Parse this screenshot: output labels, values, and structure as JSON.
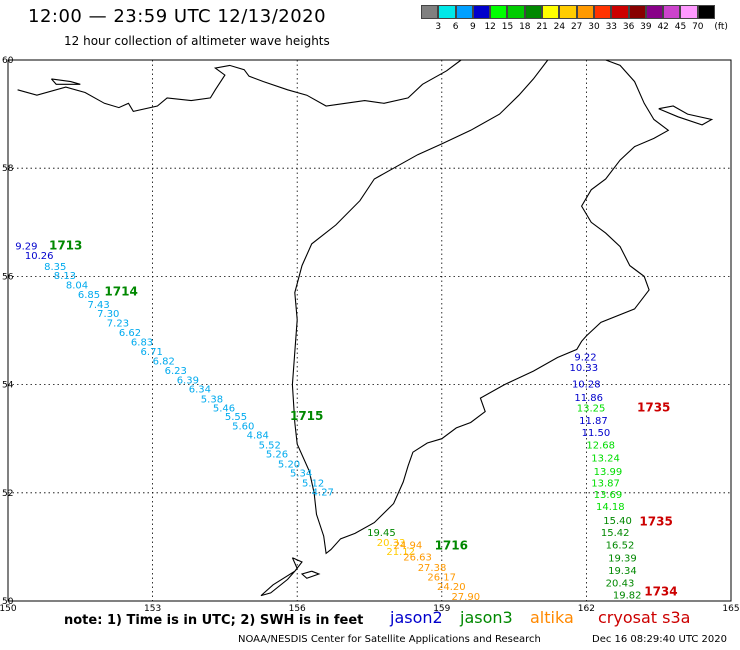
{
  "header": {
    "title": "12:00 — 23:59 UTC 12/13/2020",
    "subtitle": "12 hour collection of altimeter wave heights"
  },
  "legend": {
    "colors": [
      "#808080",
      "#00e8e8",
      "#00a0ff",
      "#0000cc",
      "#00ff00",
      "#00cc00",
      "#008800",
      "#ffff00",
      "#ffcc00",
      "#ff9900",
      "#ff3300",
      "#cc0000",
      "#880000",
      "#880088",
      "#cc44cc",
      "#ff99ff",
      "#000000"
    ],
    "labels": [
      "3",
      "6",
      "9",
      "12",
      "15",
      "18",
      "21",
      "24",
      "27",
      "30",
      "33",
      "36",
      "39",
      "42",
      "45",
      "70",
      "(ft)"
    ]
  },
  "map": {
    "lon_range": [
      150,
      165
    ],
    "lat_range": [
      50,
      60
    ],
    "lon_ticks": [
      {
        "v": 150,
        "label": "150"
      },
      {
        "v": 153,
        "label": "153"
      },
      {
        "v": 156,
        "label": "156"
      },
      {
        "v": 159,
        "label": "159"
      },
      {
        "v": 162,
        "label": "162"
      },
      {
        "v": 165,
        "label": "165"
      }
    ],
    "lat_ticks": [
      {
        "v": 50,
        "label": "50"
      },
      {
        "v": 52,
        "label": "52"
      },
      {
        "v": 54,
        "label": "54"
      },
      {
        "v": 56,
        "label": "56"
      },
      {
        "v": 58,
        "label": "58"
      },
      {
        "v": 60,
        "label": "60"
      }
    ],
    "coastlines": [
      [
        [
          150.2,
          59.45
        ],
        [
          150.6,
          59.35
        ],
        [
          151.2,
          59.5
        ],
        [
          151.6,
          59.4
        ],
        [
          152.0,
          59.2
        ],
        [
          152.3,
          59.12
        ],
        [
          152.5,
          59.2
        ],
        [
          152.6,
          59.05
        ],
        [
          153.1,
          59.15
        ],
        [
          153.3,
          59.3
        ],
        [
          153.8,
          59.25
        ],
        [
          154.2,
          59.3
        ],
        [
          154.3,
          59.45
        ],
        [
          154.5,
          59.72
        ],
        [
          154.3,
          59.85
        ],
        [
          154.6,
          59.9
        ],
        [
          154.9,
          59.82
        ],
        [
          155.0,
          59.7
        ],
        [
          155.3,
          59.6
        ],
        [
          155.8,
          59.45
        ],
        [
          156.2,
          59.35
        ],
        [
          156.6,
          59.15
        ],
        [
          157.0,
          59.2
        ],
        [
          157.4,
          59.25
        ],
        [
          157.8,
          59.2
        ],
        [
          158.3,
          59.3
        ],
        [
          158.6,
          59.55
        ],
        [
          159.1,
          59.8
        ],
        [
          159.4,
          60.0
        ]
      ],
      [
        [
          162.4,
          60.0
        ],
        [
          162.7,
          59.9
        ],
        [
          163.0,
          59.6
        ],
        [
          163.2,
          59.2
        ],
        [
          163.4,
          58.9
        ],
        [
          163.7,
          58.7
        ],
        [
          163.4,
          58.55
        ],
        [
          163.0,
          58.4
        ],
        [
          162.7,
          58.15
        ],
        [
          162.4,
          57.8
        ],
        [
          162.1,
          57.6
        ],
        [
          161.9,
          57.3
        ],
        [
          162.1,
          57.0
        ],
        [
          162.4,
          56.8
        ],
        [
          162.7,
          56.55
        ],
        [
          162.9,
          56.2
        ],
        [
          163.2,
          56.0
        ],
        [
          163.3,
          55.75
        ],
        [
          163.0,
          55.4
        ],
        [
          162.3,
          55.15
        ],
        [
          162.0,
          54.9
        ],
        [
          161.9,
          54.8
        ],
        [
          161.8,
          54.65
        ],
        [
          161.4,
          54.5
        ],
        [
          160.9,
          54.25
        ],
        [
          160.3,
          54.0
        ],
        [
          159.8,
          53.75
        ],
        [
          159.9,
          53.5
        ],
        [
          159.6,
          53.3
        ],
        [
          159.3,
          53.2
        ],
        [
          159.0,
          53.0
        ],
        [
          158.7,
          52.92
        ],
        [
          158.4,
          52.75
        ],
        [
          158.3,
          52.5
        ],
        [
          158.2,
          52.2
        ],
        [
          158.0,
          51.8
        ],
        [
          157.6,
          51.45
        ],
        [
          157.2,
          51.25
        ],
        [
          156.9,
          51.15
        ],
        [
          156.7,
          50.95
        ],
        [
          156.6,
          50.88
        ],
        [
          156.55,
          51.2
        ],
        [
          156.4,
          51.6
        ],
        [
          156.35,
          52.0
        ],
        [
          156.25,
          52.4
        ],
        [
          156.0,
          52.9
        ],
        [
          155.95,
          53.3
        ],
        [
          155.9,
          54.0
        ],
        [
          155.95,
          54.6
        ],
        [
          156.0,
          55.2
        ],
        [
          155.95,
          55.7
        ],
        [
          156.1,
          56.2
        ],
        [
          156.3,
          56.6
        ],
        [
          156.8,
          56.95
        ],
        [
          157.3,
          57.4
        ],
        [
          157.6,
          57.8
        ],
        [
          158.0,
          58.0
        ],
        [
          158.5,
          58.25
        ],
        [
          159.0,
          58.45
        ],
        [
          159.6,
          58.7
        ],
        [
          160.2,
          59.0
        ],
        [
          160.6,
          59.35
        ],
        [
          160.9,
          59.65
        ],
        [
          161.2,
          60.0
        ]
      ],
      [
        [
          155.9,
          50.8
        ],
        [
          156.1,
          50.72
        ],
        [
          155.95,
          50.55
        ],
        [
          155.5,
          50.3
        ],
        [
          155.25,
          50.1
        ],
        [
          155.45,
          50.15
        ],
        [
          155.8,
          50.4
        ],
        [
          156.0,
          50.6
        ],
        [
          155.9,
          50.8
        ]
      ],
      [
        [
          156.3,
          50.55
        ],
        [
          156.45,
          50.5
        ],
        [
          156.2,
          50.42
        ],
        [
          156.1,
          50.5
        ],
        [
          156.3,
          50.55
        ]
      ],
      [
        [
          163.5,
          59.1
        ],
        [
          163.8,
          59.15
        ],
        [
          164.1,
          59.0
        ],
        [
          164.6,
          58.9
        ],
        [
          164.4,
          58.8
        ],
        [
          163.9,
          58.95
        ],
        [
          163.5,
          59.1
        ]
      ],
      [
        [
          150.9,
          59.65
        ],
        [
          151.3,
          59.6
        ],
        [
          151.5,
          59.55
        ],
        [
          151.0,
          59.55
        ],
        [
          150.9,
          59.65
        ]
      ]
    ],
    "passes": [
      {
        "label": "1713",
        "lon": 150.85,
        "lat": 56.5,
        "color": "#008800"
      },
      {
        "label": "1714",
        "lon": 152.0,
        "lat": 55.65,
        "color": "#008800"
      },
      {
        "label": "1715",
        "lon": 155.85,
        "lat": 53.35,
        "color": "#008800"
      },
      {
        "label": "1716",
        "lon": 158.85,
        "lat": 50.95,
        "color": "#008800"
      },
      {
        "label": "1735",
        "lon": 163.05,
        "lat": 53.5,
        "color": "#cc0000"
      },
      {
        "label": "1735",
        "lon": 163.1,
        "lat": 51.4,
        "color": "#cc0000"
      },
      {
        "label": "1734",
        "lon": 163.2,
        "lat": 50.1,
        "color": "#cc0000"
      }
    ],
    "tracks": [
      {
        "color": "#0000cc",
        "obs": [
          {
            "lon": 150.15,
            "lat": 56.5,
            "v": "9.29"
          },
          {
            "lon": 150.35,
            "lat": 56.32,
            "v": "10.26"
          }
        ]
      },
      {
        "color": "#00aaee",
        "obs": [
          {
            "lon": 150.75,
            "lat": 56.12,
            "v": "8.35"
          },
          {
            "lon": 150.95,
            "lat": 55.95,
            "v": "8.13"
          },
          {
            "lon": 151.2,
            "lat": 55.78,
            "v": "8.04"
          },
          {
            "lon": 151.45,
            "lat": 55.6,
            "v": "6.85"
          },
          {
            "lon": 151.65,
            "lat": 55.42,
            "v": "7.43"
          },
          {
            "lon": 151.85,
            "lat": 55.25,
            "v": "7.30"
          },
          {
            "lon": 152.05,
            "lat": 55.07,
            "v": "7.23"
          },
          {
            "lon": 152.3,
            "lat": 54.9,
            "v": "6.62"
          },
          {
            "lon": 152.55,
            "lat": 54.72,
            "v": "6.83"
          },
          {
            "lon": 152.75,
            "lat": 54.55,
            "v": "6.71"
          },
          {
            "lon": 153.0,
            "lat": 54.37,
            "v": "6.82"
          },
          {
            "lon": 153.25,
            "lat": 54.2,
            "v": "6.23"
          },
          {
            "lon": 153.5,
            "lat": 54.02,
            "v": "6.39"
          },
          {
            "lon": 153.75,
            "lat": 53.85,
            "v": "6.34"
          },
          {
            "lon": 154.0,
            "lat": 53.67,
            "v": "5.38"
          },
          {
            "lon": 154.25,
            "lat": 53.5,
            "v": "5.46"
          },
          {
            "lon": 154.5,
            "lat": 53.35,
            "v": "5.55"
          },
          {
            "lon": 154.65,
            "lat": 53.17,
            "v": "5.60"
          },
          {
            "lon": 154.95,
            "lat": 53.0,
            "v": "4.84"
          },
          {
            "lon": 155.2,
            "lat": 52.82,
            "v": "5.52"
          },
          {
            "lon": 155.35,
            "lat": 52.65,
            "v": "5.26"
          },
          {
            "lon": 155.6,
            "lat": 52.47,
            "v": "5.20"
          },
          {
            "lon": 155.85,
            "lat": 52.3,
            "v": "5.34"
          },
          {
            "lon": 156.1,
            "lat": 52.12,
            "v": "5.12"
          },
          {
            "lon": 156.3,
            "lat": 51.95,
            "v": "4.27"
          }
        ]
      },
      {
        "color": "#008800",
        "obs": [
          {
            "lon": 157.45,
            "lat": 51.2,
            "v": "19.45"
          }
        ]
      },
      {
        "color": "#ffcc00",
        "obs": [
          {
            "lon": 157.65,
            "lat": 51.02,
            "v": "20.33"
          },
          {
            "lon": 157.85,
            "lat": 50.85,
            "v": "21.12"
          }
        ]
      },
      {
        "color": "#ff9900",
        "obs": [
          {
            "lon": 158.0,
            "lat": 50.97,
            "v": "24.94"
          },
          {
            "lon": 158.2,
            "lat": 50.75,
            "v": "26.63"
          },
          {
            "lon": 158.5,
            "lat": 50.55,
            "v": "27.38"
          },
          {
            "lon": 158.7,
            "lat": 50.38,
            "v": "26.17"
          },
          {
            "lon": 158.9,
            "lat": 50.2,
            "v": "24.20"
          },
          {
            "lon": 159.2,
            "lat": 50.02,
            "v": "27.90"
          }
        ]
      },
      {
        "color": "#0000cc",
        "obs": [
          {
            "lon": 161.75,
            "lat": 54.45,
            "v": "9.22"
          },
          {
            "lon": 161.65,
            "lat": 54.25,
            "v": "10.33"
          },
          {
            "lon": 161.7,
            "lat": 53.95,
            "v": "10.28"
          },
          {
            "lon": 161.75,
            "lat": 53.7,
            "v": "11.86"
          },
          {
            "lon": 161.85,
            "lat": 53.27,
            "v": "11.87"
          },
          {
            "lon": 161.9,
            "lat": 53.05,
            "v": "11.50"
          }
        ]
      },
      {
        "color": "#00dd00",
        "obs": [
          {
            "lon": 161.8,
            "lat": 53.5,
            "v": "13.25"
          },
          {
            "lon": 162.0,
            "lat": 52.82,
            "v": "12.68"
          },
          {
            "lon": 162.1,
            "lat": 52.58,
            "v": "13.24"
          },
          {
            "lon": 162.15,
            "lat": 52.33,
            "v": "13.99"
          },
          {
            "lon": 162.1,
            "lat": 52.12,
            "v": "13.87"
          },
          {
            "lon": 162.15,
            "lat": 51.9,
            "v": "13.69"
          },
          {
            "lon": 162.2,
            "lat": 51.68,
            "v": "14.18"
          }
        ]
      },
      {
        "color": "#008800",
        "obs": [
          {
            "lon": 162.35,
            "lat": 51.42,
            "v": "15.40"
          },
          {
            "lon": 162.3,
            "lat": 51.2,
            "v": "15.42"
          },
          {
            "lon": 162.4,
            "lat": 50.97,
            "v": "16.52"
          },
          {
            "lon": 162.45,
            "lat": 50.73,
            "v": "19.39"
          },
          {
            "lon": 162.45,
            "lat": 50.5,
            "v": "19.34"
          },
          {
            "lon": 162.4,
            "lat": 50.27,
            "v": "20.43"
          },
          {
            "lon": 162.55,
            "lat": 50.05,
            "v": "19.82"
          }
        ]
      }
    ]
  },
  "footer": {
    "note": "note:  1) Time is in UTC;  2) SWH is in feet",
    "satellites": [
      {
        "name": "jason2",
        "color": "#0000cc"
      },
      {
        "name": "jason3",
        "color": "#008800"
      },
      {
        "name": "altika",
        "color": "#ff8800"
      },
      {
        "name": "cryosat s3a",
        "color": "#cc0000"
      }
    ],
    "credit": "NOAA/NESDIS Center for Satellite Applications and Research",
    "timestamp": "Dec 16 08:29:40 UTC 2020"
  }
}
